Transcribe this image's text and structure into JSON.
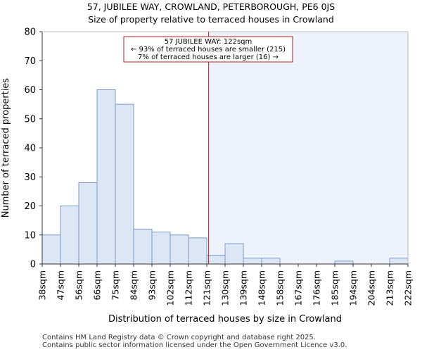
{
  "header": {
    "title_line1": "57, JUBILEE WAY, CROWLAND, PETERBOROUGH, PE6 0JS",
    "title_line2": "Size of property relative to terraced houses in Crowland"
  },
  "footer": {
    "line1": "Contains HM Land Registry data © Crown copyright and database right 2025.",
    "line2": "Contains public sector information licensed under the Open Government Licence v3.0."
  },
  "chart_data": {
    "type": "bar",
    "title": "Size of property relative to terraced houses in Crowland",
    "xlabel": "Distribution of terraced houses by size in Crowland",
    "ylabel": "Number of terraced properties",
    "ylim": [
      0,
      80
    ],
    "yticks": [
      0,
      10,
      20,
      30,
      40,
      50,
      60,
      70,
      80
    ],
    "bin_edges": [
      "38sqm",
      "47sqm",
      "56sqm",
      "66sqm",
      "75sqm",
      "84sqm",
      "93sqm",
      "102sqm",
      "112sqm",
      "121sqm",
      "130sqm",
      "139sqm",
      "148sqm",
      "158sqm",
      "167sqm",
      "176sqm",
      "185sqm",
      "194sqm",
      "204sqm",
      "213sqm",
      "222sqm"
    ],
    "values": [
      10,
      20,
      28,
      60,
      55,
      12,
      11,
      10,
      9,
      3,
      7,
      2,
      2,
      0,
      0,
      0,
      1,
      0,
      0,
      2
    ],
    "marker": {
      "label": "57 JUBILEE WAY: 122sqm",
      "bin_position": 9.1,
      "smaller_text": "← 93% of terraced houses are smaller (215)",
      "larger_text": "7% of terraced houses are larger (16) →"
    },
    "colors": {
      "bar_fill": "#dce6f5",
      "bar_stroke": "#7b9ac8",
      "highlight_bg": "#eef2fb",
      "marker": "#b22222"
    }
  }
}
